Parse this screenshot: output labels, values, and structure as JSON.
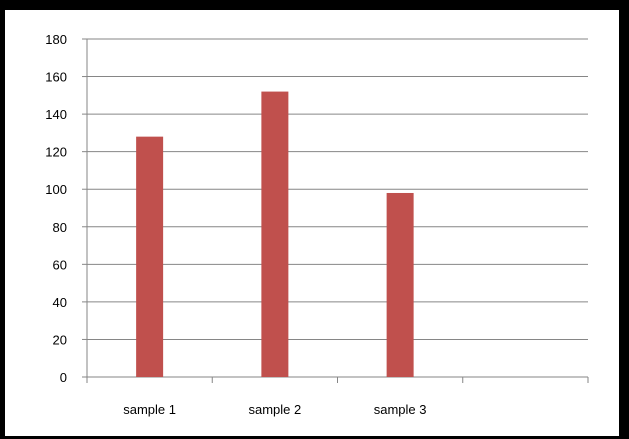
{
  "chart_data": {
    "type": "bar",
    "categories": [
      "sample 1",
      "sample 2",
      "sample 3",
      ""
    ],
    "series": [
      {
        "values": [
          128,
          152,
          98,
          null
        ]
      }
    ],
    "title": "",
    "xlabel": "",
    "ylabel": "",
    "ylim": [
      0,
      180
    ],
    "yticks": [
      0,
      20,
      40,
      60,
      80,
      100,
      120,
      140,
      160,
      180
    ],
    "ytick_labels": [
      "0",
      "20",
      "40",
      "60",
      "80",
      "100",
      "120",
      "140",
      "160",
      "180"
    ],
    "grid": true,
    "legend": "none",
    "bar_color": "#C0504D",
    "gridline_color": "#868686"
  }
}
